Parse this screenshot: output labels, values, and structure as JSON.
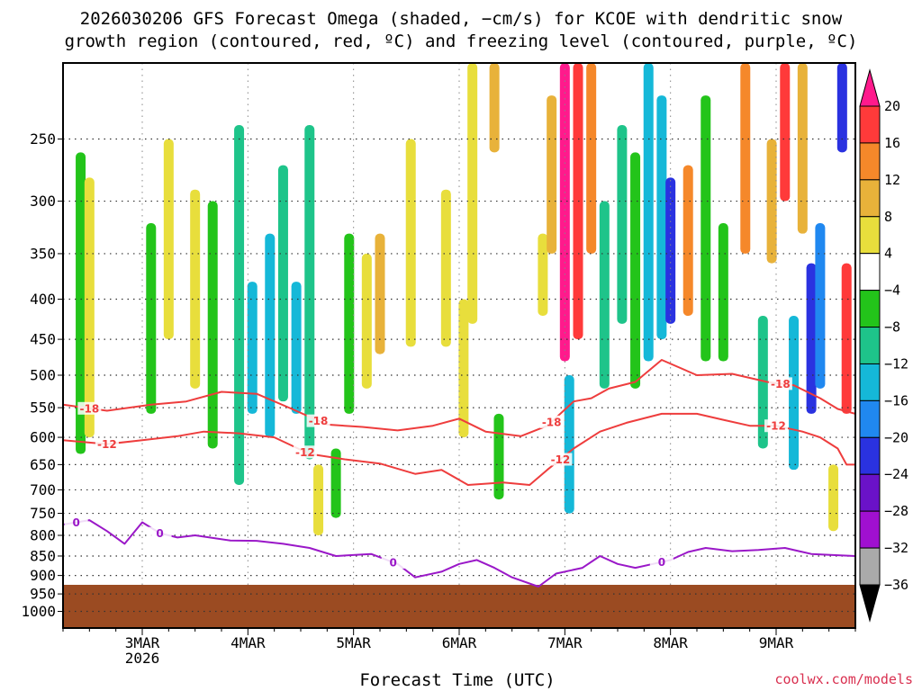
{
  "chart_data": {
    "type": "heatmap",
    "title_line1": "2026030206 GFS Forecast Omega (shaded, −cm/s) for KCOE with dendritic snow",
    "title_line2": "growth region (contoured, red, ºC) and freezing level (contoured, purple, ºC)",
    "xlabel": "Forecast Time (UTC)",
    "ylabel": "Pressure (hPa)",
    "credit": "coolwx.com/models",
    "x_range_hours": [
      0,
      180
    ],
    "y_range_hpa": [
      1050,
      200
    ],
    "y_ticks": [
      250,
      300,
      350,
      400,
      450,
      500,
      550,
      600,
      650,
      700,
      750,
      800,
      850,
      900,
      950,
      1000
    ],
    "y_tick_labels": [
      "250",
      "300",
      "350",
      "400",
      "450",
      "500",
      "550",
      "600",
      "650",
      "700",
      "750",
      "800",
      "850",
      "900",
      "950",
      "1000"
    ],
    "x_ticks": [
      {
        "label": "3MAR",
        "hour": 18,
        "sub": "2026"
      },
      {
        "label": "4MAR",
        "hour": 42,
        "sub": ""
      },
      {
        "label": "5MAR",
        "hour": 66,
        "sub": ""
      },
      {
        "label": "6MAR",
        "hour": 90,
        "sub": ""
      },
      {
        "label": "7MAR",
        "hour": 114,
        "sub": ""
      },
      {
        "label": "8MAR",
        "hour": 138,
        "sub": ""
      },
      {
        "label": "9MAR",
        "hour": 162,
        "sub": ""
      }
    ],
    "ground_top_hpa": 925,
    "colorbar": {
      "labels": [
        "20",
        "16",
        "12",
        "8",
        "4",
        "−4",
        "−8",
        "−12",
        "−16",
        "−20",
        "−24",
        "−28",
        "−32",
        "−36"
      ],
      "colors": [
        "#ff1a8c",
        "#ff3a3a",
        "#f5882a",
        "#e8b23a",
        "#e8de3c",
        "#ffffff",
        "#23c41a",
        "#1ec48a",
        "#15b8d8",
        "#2088f0",
        "#2a32e0",
        "#6a12c8",
        "#a010d0",
        "#aaaaaa",
        "#000000"
      ]
    },
    "omega_series": [
      {
        "name": "omega-cell",
        "hour": 4,
        "p_top": 260,
        "p_bot": 630,
        "value": -6
      },
      {
        "name": "omega-cell",
        "hour": 6,
        "p_top": 280,
        "p_bot": 600,
        "value": 5
      },
      {
        "name": "omega-cell",
        "hour": 20,
        "p_top": 320,
        "p_bot": 560,
        "value": -5
      },
      {
        "name": "omega-cell",
        "hour": 24,
        "p_top": 250,
        "p_bot": 450,
        "value": 5
      },
      {
        "name": "omega-cell",
        "hour": 30,
        "p_top": 290,
        "p_bot": 520,
        "value": 6
      },
      {
        "name": "omega-cell",
        "hour": 34,
        "p_top": 300,
        "p_bot": 620,
        "value": -7
      },
      {
        "name": "omega-cell",
        "hour": 40,
        "p_top": 240,
        "p_bot": 690,
        "value": -9
      },
      {
        "name": "omega-cell",
        "hour": 43,
        "p_top": 380,
        "p_bot": 560,
        "value": -13
      },
      {
        "name": "omega-cell",
        "hour": 47,
        "p_top": 330,
        "p_bot": 600,
        "value": -12
      },
      {
        "name": "omega-cell",
        "hour": 50,
        "p_top": 270,
        "p_bot": 540,
        "value": -8
      },
      {
        "name": "omega-cell",
        "hour": 53,
        "p_top": 380,
        "p_bot": 560,
        "value": -14
      },
      {
        "name": "omega-cell",
        "hour": 56,
        "p_top": 240,
        "p_bot": 640,
        "value": -10
      },
      {
        "name": "omega-cell",
        "hour": 58,
        "p_top": 650,
        "p_bot": 800,
        "value": 6
      },
      {
        "name": "omega-cell",
        "hour": 62,
        "p_top": 620,
        "p_bot": 760,
        "value": -6
      },
      {
        "name": "omega-cell",
        "hour": 65,
        "p_top": 330,
        "p_bot": 560,
        "value": -6
      },
      {
        "name": "omega-cell",
        "hour": 69,
        "p_top": 350,
        "p_bot": 520,
        "value": 6
      },
      {
        "name": "omega-cell",
        "hour": 72,
        "p_top": 330,
        "p_bot": 470,
        "value": 9
      },
      {
        "name": "omega-cell",
        "hour": 79,
        "p_top": 250,
        "p_bot": 460,
        "value": 5
      },
      {
        "name": "omega-cell",
        "hour": 87,
        "p_top": 290,
        "p_bot": 460,
        "value": 5
      },
      {
        "name": "omega-cell",
        "hour": 91,
        "p_top": 400,
        "p_bot": 600,
        "value": 6
      },
      {
        "name": "omega-cell",
        "hour": 93,
        "p_top": 200,
        "p_bot": 430,
        "value": 6
      },
      {
        "name": "omega-cell",
        "hour": 98,
        "p_top": 200,
        "p_bot": 260,
        "value": 10
      },
      {
        "name": "omega-cell",
        "hour": 99,
        "p_top": 560,
        "p_bot": 720,
        "value": -7
      },
      {
        "name": "omega-cell",
        "hour": 109,
        "p_top": 330,
        "p_bot": 420,
        "value": 5
      },
      {
        "name": "omega-cell",
        "hour": 111,
        "p_top": 220,
        "p_bot": 350,
        "value": 8
      },
      {
        "name": "omega-cell",
        "hour": 114,
        "p_top": 200,
        "p_bot": 480,
        "value": 21
      },
      {
        "name": "omega-cell",
        "hour": 115,
        "p_top": 500,
        "p_bot": 750,
        "value": -13
      },
      {
        "name": "omega-cell",
        "hour": 117,
        "p_top": 200,
        "p_bot": 450,
        "value": 18
      },
      {
        "name": "omega-cell",
        "hour": 120,
        "p_top": 200,
        "p_bot": 350,
        "value": 14
      },
      {
        "name": "omega-cell",
        "hour": 123,
        "p_top": 300,
        "p_bot": 520,
        "value": -8
      },
      {
        "name": "omega-cell",
        "hour": 127,
        "p_top": 240,
        "p_bot": 430,
        "value": -10
      },
      {
        "name": "omega-cell",
        "hour": 130,
        "p_top": 260,
        "p_bot": 520,
        "value": -7
      },
      {
        "name": "omega-cell",
        "hour": 133,
        "p_top": 200,
        "p_bot": 480,
        "value": -12
      },
      {
        "name": "omega-cell",
        "hour": 136,
        "p_top": 220,
        "p_bot": 450,
        "value": -14
      },
      {
        "name": "omega-cell",
        "hour": 138,
        "p_top": 280,
        "p_bot": 430,
        "value": -22
      },
      {
        "name": "omega-cell",
        "hour": 142,
        "p_top": 270,
        "p_bot": 420,
        "value": 13
      },
      {
        "name": "omega-cell",
        "hour": 146,
        "p_top": 220,
        "p_bot": 480,
        "value": -7
      },
      {
        "name": "omega-cell",
        "hour": 150,
        "p_top": 320,
        "p_bot": 480,
        "value": -7
      },
      {
        "name": "omega-cell",
        "hour": 155,
        "p_top": 200,
        "p_bot": 350,
        "value": 12
      },
      {
        "name": "omega-cell",
        "hour": 159,
        "p_top": 420,
        "p_bot": 620,
        "value": -10
      },
      {
        "name": "omega-cell",
        "hour": 161,
        "p_top": 250,
        "p_bot": 360,
        "value": 9
      },
      {
        "name": "omega-cell",
        "hour": 164,
        "p_top": 200,
        "p_bot": 300,
        "value": 18
      },
      {
        "name": "omega-cell",
        "hour": 166,
        "p_top": 420,
        "p_bot": 660,
        "value": -13
      },
      {
        "name": "omega-cell",
        "hour": 168,
        "p_top": 200,
        "p_bot": 330,
        "value": 11
      },
      {
        "name": "omega-cell",
        "hour": 170,
        "p_top": 360,
        "p_bot": 560,
        "value": -20
      },
      {
        "name": "omega-cell",
        "hour": 172,
        "p_top": 320,
        "p_bot": 520,
        "value": -16
      },
      {
        "name": "omega-cell",
        "hour": 175,
        "p_top": 650,
        "p_bot": 790,
        "value": 6
      },
      {
        "name": "omega-cell",
        "hour": 177,
        "p_top": 200,
        "p_bot": 260,
        "value": -21
      },
      {
        "name": "omega-cell",
        "hour": 178,
        "p_top": 360,
        "p_bot": 560,
        "value": 18
      }
    ],
    "dgz_top_minus18": {
      "label": "-18",
      "label_hours": [
        6,
        58,
        111,
        163
      ],
      "points": [
        [
          0,
          545
        ],
        [
          10,
          555
        ],
        [
          20,
          545
        ],
        [
          28,
          540
        ],
        [
          36,
          525
        ],
        [
          44,
          528
        ],
        [
          52,
          552
        ],
        [
          60,
          578
        ],
        [
          68,
          582
        ],
        [
          76,
          588
        ],
        [
          84,
          580
        ],
        [
          90,
          568
        ],
        [
          96,
          590
        ],
        [
          104,
          598
        ],
        [
          110,
          580
        ],
        [
          116,
          540
        ],
        [
          120,
          535
        ],
        [
          124,
          520
        ],
        [
          130,
          510
        ],
        [
          136,
          478
        ],
        [
          144,
          500
        ],
        [
          152,
          498
        ],
        [
          160,
          510
        ],
        [
          166,
          515
        ],
        [
          172,
          535
        ],
        [
          176,
          552
        ],
        [
          180,
          560
        ]
      ]
    },
    "dgz_bottom_minus12": {
      "label": "-12",
      "label_hours": [
        10,
        55,
        113,
        162
      ],
      "points": [
        [
          0,
          605
        ],
        [
          10,
          612
        ],
        [
          18,
          605
        ],
        [
          26,
          598
        ],
        [
          32,
          590
        ],
        [
          40,
          593
        ],
        [
          48,
          600
        ],
        [
          56,
          630
        ],
        [
          64,
          640
        ],
        [
          72,
          648
        ],
        [
          80,
          668
        ],
        [
          86,
          660
        ],
        [
          92,
          690
        ],
        [
          100,
          685
        ],
        [
          106,
          690
        ],
        [
          110,
          660
        ],
        [
          116,
          620
        ],
        [
          122,
          590
        ],
        [
          128,
          575
        ],
        [
          136,
          560
        ],
        [
          144,
          560
        ],
        [
          150,
          570
        ],
        [
          156,
          580
        ],
        [
          162,
          580
        ],
        [
          168,
          590
        ],
        [
          172,
          600
        ],
        [
          176,
          620
        ],
        [
          178,
          650
        ],
        [
          180,
          650
        ]
      ]
    },
    "freezing_level_0c": {
      "label": "0",
      "label_hours": [
        3,
        22,
        75,
        136
      ],
      "points": [
        [
          0,
          775
        ],
        [
          6,
          765
        ],
        [
          10,
          790
        ],
        [
          14,
          820
        ],
        [
          18,
          770
        ],
        [
          22,
          795
        ],
        [
          26,
          805
        ],
        [
          30,
          800
        ],
        [
          38,
          812
        ],
        [
          44,
          813
        ],
        [
          50,
          820
        ],
        [
          56,
          830
        ],
        [
          62,
          850
        ],
        [
          70,
          845
        ],
        [
          76,
          870
        ],
        [
          80,
          905
        ],
        [
          86,
          890
        ],
        [
          90,
          870
        ],
        [
          94,
          860
        ],
        [
          98,
          880
        ],
        [
          102,
          905
        ],
        [
          108,
          930
        ],
        [
          112,
          895
        ],
        [
          118,
          880
        ],
        [
          122,
          850
        ],
        [
          126,
          870
        ],
        [
          130,
          880
        ],
        [
          134,
          870
        ],
        [
          138,
          860
        ],
        [
          142,
          840
        ],
        [
          146,
          830
        ],
        [
          152,
          838
        ],
        [
          158,
          835
        ],
        [
          164,
          830
        ],
        [
          170,
          845
        ],
        [
          176,
          848
        ],
        [
          180,
          850
        ]
      ]
    }
  }
}
